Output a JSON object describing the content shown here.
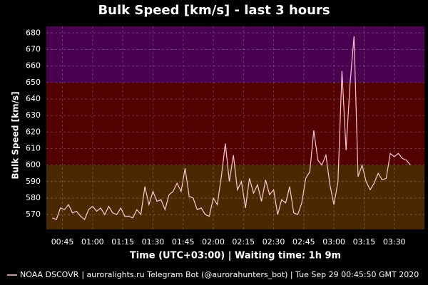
{
  "chart_data": {
    "type": "line",
    "title": "Bulk Speed [km/s] - last 3 hours",
    "y_label": "Bulk Speed [km/s]",
    "x_label": "Time (UTC+03:00) | Waiting time: 1h 9m",
    "footer": "| auroralights.ru Telegram Bot (@aurorahunters_bot) | Tue Sep 29 00:45:50 GMT 2020",
    "x": [
      "00:40",
      "00:42",
      "00:44",
      "00:46",
      "00:48",
      "00:50",
      "00:52",
      "00:54",
      "00:56",
      "00:58",
      "01:00",
      "01:02",
      "01:04",
      "01:06",
      "01:08",
      "01:10",
      "01:12",
      "01:14",
      "01:16",
      "01:18",
      "01:20",
      "01:22",
      "01:24",
      "01:26",
      "01:28",
      "01:30",
      "01:32",
      "01:34",
      "01:36",
      "01:38",
      "01:40",
      "01:42",
      "01:44",
      "01:46",
      "01:48",
      "01:50",
      "01:52",
      "01:54",
      "01:56",
      "01:58",
      "02:00",
      "02:02",
      "02:04",
      "02:06",
      "02:08",
      "02:10",
      "02:12",
      "02:14",
      "02:16",
      "02:18",
      "02:20",
      "02:22",
      "02:24",
      "02:26",
      "02:28",
      "02:30",
      "02:32",
      "02:34",
      "02:36",
      "02:38",
      "02:40",
      "02:42",
      "02:44",
      "02:46",
      "02:48",
      "02:50",
      "02:52",
      "02:54",
      "02:56",
      "02:58",
      "03:00",
      "03:02",
      "03:04",
      "03:06",
      "03:08",
      "03:10",
      "03:12",
      "03:14",
      "03:16",
      "03:18",
      "03:20",
      "03:22",
      "03:24",
      "03:26",
      "03:28",
      "03:30",
      "03:32",
      "03:34",
      "03:36",
      "03:38"
    ],
    "series": [
      {
        "name": "NOAA DSCOVR",
        "color": "#ffc8d8",
        "values": [
          568,
          567,
          574,
          573,
          576,
          571,
          572,
          569,
          567,
          573,
          575,
          572,
          574,
          570,
          575,
          571,
          570,
          574,
          569,
          569,
          568,
          573,
          570,
          587,
          576,
          584,
          578,
          579,
          573,
          582,
          584,
          589,
          584,
          598,
          581,
          580,
          573,
          574,
          570,
          569,
          580,
          576,
          593,
          613,
          590,
          606,
          585,
          590,
          574,
          592,
          583,
          588,
          578,
          591,
          582,
          585,
          570,
          579,
          577,
          587,
          571,
          570,
          577,
          592,
          596,
          621,
          603,
          600,
          606,
          588,
          576,
          590,
          657,
          609,
          649,
          678,
          593,
          600,
          590,
          585,
          589,
          595,
          591,
          592,
          607,
          605,
          607,
          604,
          603,
          600
        ]
      }
    ],
    "xlim": [
      "00:37",
      "03:45"
    ],
    "xticks": [
      "00:45",
      "01:00",
      "01:15",
      "01:30",
      "01:45",
      "02:00",
      "02:15",
      "02:30",
      "02:45",
      "03:00",
      "03:15",
      "03:30"
    ],
    "ylim": [
      561,
      684
    ],
    "yticks": [
      570,
      580,
      590,
      600,
      610,
      620,
      630,
      640,
      650,
      660,
      670,
      680
    ],
    "band_edges": [
      600,
      650
    ],
    "band_colors": [
      "#4a2800",
      "#520000",
      "#4a0050"
    ],
    "grid": true
  }
}
